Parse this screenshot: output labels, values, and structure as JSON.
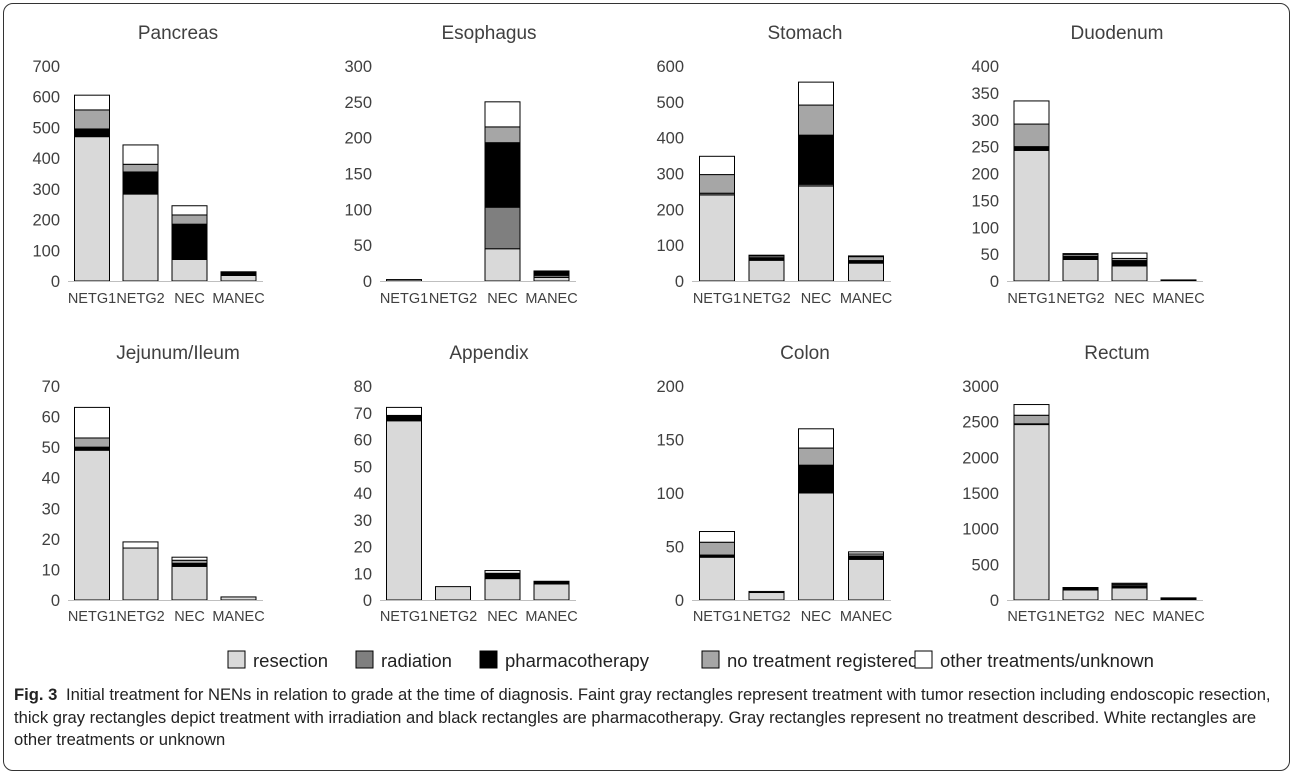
{
  "legend": {
    "items": [
      {
        "label": "resection",
        "color": "#d9d9d9"
      },
      {
        "label": "radiation",
        "color": "#7f7f7f"
      },
      {
        "label": "pharmacotherapy",
        "color": "#000000"
      },
      {
        "label": "no treatment registered",
        "color": "#a6a6a6"
      },
      {
        "label": "other treatments/unknown",
        "color": "#ffffff"
      }
    ]
  },
  "caption": {
    "label": "Fig. 3",
    "text": "Initial treatment for NENs in relation to grade at the time of diagnosis. Faint gray rectangles represent treatment with tumor resection including endoscopic resection, thick gray rectangles depict treatment with irradiation and black rectangles are pharmacotherapy. Gray rectangles represent no treatment described. White rectangles are other treatments or unknown"
  },
  "chart_data": [
    {
      "type": "bar",
      "stacked": true,
      "title": "Pancreas",
      "categories": [
        "NETG1",
        "NETG2",
        "NEC",
        "MANEC"
      ],
      "ylim": [
        0,
        700
      ],
      "yticks": [
        "0",
        "100",
        "200",
        "300",
        "400",
        "500",
        "600",
        "700"
      ],
      "series": [
        {
          "name": "resection",
          "values": [
            470,
            283,
            70,
            18
          ]
        },
        {
          "name": "radiation",
          "values": [
            0,
            0,
            0,
            0
          ]
        },
        {
          "name": "pharmacotherapy",
          "values": [
            25,
            72,
            115,
            9
          ]
        },
        {
          "name": "no treatment registered",
          "values": [
            62,
            25,
            30,
            2
          ]
        },
        {
          "name": "other treatments/unknown",
          "values": [
            48,
            63,
            30,
            1
          ]
        }
      ]
    },
    {
      "type": "bar",
      "stacked": true,
      "title": "Esophagus",
      "categories": [
        "NETG1",
        "NETG2",
        "NEC",
        "MANEC"
      ],
      "ylim": [
        0,
        300
      ],
      "yticks": [
        "0",
        "50",
        "100",
        "150",
        "200",
        "250",
        "300"
      ],
      "series": [
        {
          "name": "resection",
          "values": [
            2,
            0,
            45,
            5
          ]
        },
        {
          "name": "radiation",
          "values": [
            0,
            0,
            58,
            3
          ]
        },
        {
          "name": "pharmacotherapy",
          "values": [
            0,
            0,
            90,
            6
          ]
        },
        {
          "name": "no treatment registered",
          "values": [
            0,
            0,
            22,
            0
          ]
        },
        {
          "name": "other treatments/unknown",
          "values": [
            0,
            0,
            35,
            0
          ]
        }
      ]
    },
    {
      "type": "bar",
      "stacked": true,
      "title": "Stomach",
      "categories": [
        "NETG1",
        "NETG2",
        "NEC",
        "MANEC"
      ],
      "ylim": [
        0,
        600
      ],
      "yticks": [
        "0",
        "100",
        "200",
        "300",
        "400",
        "500",
        "600"
      ],
      "series": [
        {
          "name": "resection",
          "values": [
            240,
            58,
            265,
            50
          ]
        },
        {
          "name": "radiation",
          "values": [
            5,
            2,
            5,
            2
          ]
        },
        {
          "name": "pharmacotherapy",
          "values": [
            0,
            5,
            137,
            5
          ]
        },
        {
          "name": "no treatment registered",
          "values": [
            52,
            5,
            84,
            12
          ]
        },
        {
          "name": "other treatments/unknown",
          "values": [
            51,
            2,
            64,
            1
          ]
        }
      ]
    },
    {
      "type": "bar",
      "stacked": true,
      "title": "Duodenum",
      "categories": [
        "NETG1",
        "NETG2",
        "NEC",
        "MANEC"
      ],
      "ylim": [
        0,
        400
      ],
      "yticks": [
        "0",
        "50",
        "100",
        "150",
        "200",
        "250",
        "300",
        "350",
        "400"
      ],
      "series": [
        {
          "name": "resection",
          "values": [
            243,
            40,
            28,
            1
          ]
        },
        {
          "name": "radiation",
          "values": [
            0,
            0,
            0,
            0
          ]
        },
        {
          "name": "pharmacotherapy",
          "values": [
            7,
            6,
            10,
            0
          ]
        },
        {
          "name": "no treatment registered",
          "values": [
            42,
            4,
            4,
            1
          ]
        },
        {
          "name": "other treatments/unknown",
          "values": [
            43,
            1,
            10,
            0
          ]
        }
      ]
    },
    {
      "type": "bar",
      "stacked": true,
      "title": "Jejunum/Ileum",
      "categories": [
        "NETG1",
        "NETG2",
        "NEC",
        "MANEC"
      ],
      "ylim": [
        0,
        70
      ],
      "yticks": [
        "0",
        "10",
        "20",
        "30",
        "40",
        "50",
        "60",
        "70"
      ],
      "series": [
        {
          "name": "resection",
          "values": [
            49,
            17,
            11,
            1
          ]
        },
        {
          "name": "radiation",
          "values": [
            0,
            0,
            0,
            0
          ]
        },
        {
          "name": "pharmacotherapy",
          "values": [
            1,
            0,
            1,
            0
          ]
        },
        {
          "name": "no treatment registered",
          "values": [
            3,
            0,
            1,
            0
          ]
        },
        {
          "name": "other treatments/unknown",
          "values": [
            10,
            2,
            1,
            0
          ]
        }
      ]
    },
    {
      "type": "bar",
      "stacked": true,
      "title": "Appendix",
      "categories": [
        "NETG1",
        "NETG2",
        "NEC",
        "MANEC"
      ],
      "ylim": [
        0,
        80
      ],
      "yticks": [
        "0",
        "10",
        "20",
        "30",
        "40",
        "50",
        "60",
        "70",
        "80"
      ],
      "series": [
        {
          "name": "resection",
          "values": [
            67,
            5,
            8,
            6
          ]
        },
        {
          "name": "radiation",
          "values": [
            0,
            0,
            0,
            0
          ]
        },
        {
          "name": "pharmacotherapy",
          "values": [
            2,
            0,
            2,
            1
          ]
        },
        {
          "name": "no treatment registered",
          "values": [
            0,
            0,
            0,
            0
          ]
        },
        {
          "name": "other treatments/unknown",
          "values": [
            3,
            0,
            1,
            0
          ]
        }
      ]
    },
    {
      "type": "bar",
      "stacked": true,
      "title": "Colon",
      "categories": [
        "NETG1",
        "NETG2",
        "NEC",
        "MANEC"
      ],
      "ylim": [
        0,
        200
      ],
      "yticks": [
        "0",
        "50",
        "100",
        "150",
        "200"
      ],
      "series": [
        {
          "name": "resection",
          "values": [
            40,
            7,
            100,
            38
          ]
        },
        {
          "name": "radiation",
          "values": [
            0,
            0,
            0,
            0
          ]
        },
        {
          "name": "pharmacotherapy",
          "values": [
            2,
            0,
            26,
            3
          ]
        },
        {
          "name": "no treatment registered",
          "values": [
            12,
            1,
            16,
            2
          ]
        },
        {
          "name": "other treatments/unknown",
          "values": [
            10,
            0,
            18,
            2
          ]
        }
      ]
    },
    {
      "type": "bar",
      "stacked": true,
      "title": "Rectum",
      "categories": [
        "NETG1",
        "NETG2",
        "NEC",
        "MANEC"
      ],
      "ylim": [
        0,
        3000
      ],
      "yticks": [
        "0",
        "500",
        "1000",
        "1500",
        "2000",
        "2500",
        "3000"
      ],
      "series": [
        {
          "name": "resection",
          "values": [
            2460,
            140,
            170,
            20
          ]
        },
        {
          "name": "radiation",
          "values": [
            0,
            0,
            0,
            0
          ]
        },
        {
          "name": "pharmacotherapy",
          "values": [
            10,
            20,
            30,
            5
          ]
        },
        {
          "name": "no treatment registered",
          "values": [
            120,
            10,
            20,
            3
          ]
        },
        {
          "name": "other treatments/unknown",
          "values": [
            150,
            5,
            15,
            2
          ]
        }
      ]
    }
  ]
}
